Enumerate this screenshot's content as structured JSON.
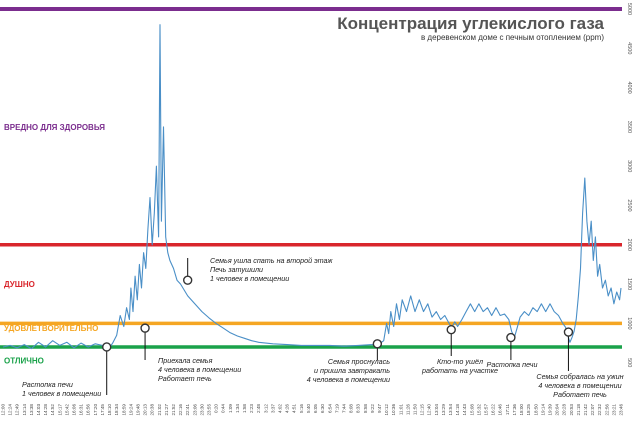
{
  "chart_data": {
    "type": "line",
    "title": "Концентрация углекислого газа",
    "subtitle": "в деревенском доме с печным отоплением (ppm)",
    "ylim": [
      0,
      5000
    ],
    "y_ticks": [
      500,
      1000,
      1500,
      2000,
      2500,
      3000,
      3500,
      4000,
      4500,
      5000
    ],
    "grid": false,
    "line_color": "#4a8fc7",
    "zones": [
      {
        "label": "ВРЕДНО ДЛЯ ЗДОРОВЬЯ",
        "line_value": 5000,
        "label_value": 3500,
        "color": "#7b2d8e"
      },
      {
        "label": "ДУШНО",
        "line_value": 2000,
        "label_value": 1500,
        "color": "#d9262c"
      },
      {
        "label": "УДОВЛЕТВОРИТЕЛЬНО",
        "line_value": 1000,
        "label_value": 940,
        "color": "#f5a623"
      },
      {
        "label": "ОТЛИЧНО",
        "line_value": 700,
        "label_value": 530,
        "color": "#1aa24a"
      }
    ],
    "x_ticks": [
      "12:00",
      "12:24",
      "12:49",
      "13:14",
      "13:38",
      "14:03",
      "14:28",
      "14:52",
      "15:17",
      "15:42",
      "16:06",
      "16:31",
      "16:56",
      "17:20",
      "17:45",
      "18:10",
      "18:34",
      "18:59",
      "19:24",
      "19:48",
      "20:13",
      "20:38",
      "21:02",
      "21:27",
      "21:52",
      "22:16",
      "22:41",
      "23:06",
      "23:30",
      "23:55",
      "0:20",
      "0:44",
      "1:09",
      "1:34",
      "1:58",
      "2:23",
      "2:48",
      "3:12",
      "3:37",
      "4:02",
      "4:26",
      "4:51",
      "5:16",
      "5:40",
      "6:05",
      "6:30",
      "6:54",
      "7:19",
      "7:44",
      "8:08",
      "8:33",
      "8:58",
      "9:22",
      "9:47",
      "10:12",
      "10:36",
      "11:01",
      "11:26",
      "11:50",
      "12:15",
      "12:40",
      "13:04",
      "13:29",
      "13:54",
      "14:18",
      "14:43",
      "15:08",
      "15:32",
      "15:57",
      "16:22",
      "16:46",
      "17:11",
      "17:36",
      "18:00",
      "18:25",
      "18:50",
      "19:14",
      "19:39",
      "20:04",
      "20:28",
      "20:53",
      "21:18",
      "21:42",
      "22:07",
      "22:32",
      "22:56",
      "23:21",
      "23:46"
    ],
    "series": [
      {
        "values": [
          [
            0,
            700
          ],
          [
            1,
            720
          ],
          [
            2,
            690
          ],
          [
            3,
            730
          ],
          [
            4,
            680
          ],
          [
            5,
            760
          ],
          [
            6,
            700
          ],
          [
            7,
            780
          ],
          [
            8,
            720
          ],
          [
            9,
            760
          ],
          [
            10,
            690
          ],
          [
            11,
            750
          ],
          [
            12,
            700
          ],
          [
            13,
            740
          ],
          [
            14,
            720
          ],
          [
            14.6,
            650
          ],
          [
            15,
            690
          ],
          [
            15.5,
            760
          ],
          [
            16,
            850
          ],
          [
            16.5,
            1100
          ],
          [
            17,
            960
          ],
          [
            17.4,
            1200
          ],
          [
            17.8,
            1050
          ],
          [
            18,
            1450
          ],
          [
            18.3,
            1150
          ],
          [
            18.6,
            1600
          ],
          [
            18.9,
            1300
          ],
          [
            19.2,
            1750
          ],
          [
            19.5,
            1450
          ],
          [
            19.8,
            1900
          ],
          [
            20.1,
            1700
          ],
          [
            20.4,
            2200
          ],
          [
            20.7,
            2600
          ],
          [
            21,
            2000
          ],
          [
            21.3,
            2400
          ],
          [
            21.6,
            3000
          ],
          [
            21.9,
            2100
          ],
          [
            22.1,
            4800
          ],
          [
            22.3,
            2300
          ],
          [
            22.6,
            3500
          ],
          [
            22.9,
            2100
          ],
          [
            23.2,
            1900
          ],
          [
            23.5,
            1800
          ],
          [
            24,
            1700
          ],
          [
            24.5,
            1550
          ],
          [
            25,
            1500
          ],
          [
            26,
            1350
          ],
          [
            27,
            1250
          ],
          [
            28,
            1150
          ],
          [
            29,
            1070
          ],
          [
            30,
            1000
          ],
          [
            31,
            940
          ],
          [
            32,
            880
          ],
          [
            33,
            840
          ],
          [
            34,
            810
          ],
          [
            35,
            780
          ],
          [
            36,
            760
          ],
          [
            38,
            740
          ],
          [
            40,
            730
          ],
          [
            42,
            720
          ],
          [
            44,
            720
          ],
          [
            46,
            720
          ],
          [
            48,
            710
          ],
          [
            50,
            720
          ],
          [
            52,
            730
          ],
          [
            53,
            740
          ],
          [
            53.6,
            780
          ],
          [
            54,
            1000
          ],
          [
            54.3,
            870
          ],
          [
            54.6,
            1150
          ],
          [
            55,
            960
          ],
          [
            55.4,
            1250
          ],
          [
            55.8,
            1050
          ],
          [
            56.2,
            1300
          ],
          [
            56.8,
            1150
          ],
          [
            57.4,
            1350
          ],
          [
            58,
            1150
          ],
          [
            58.6,
            1300
          ],
          [
            59.2,
            1150
          ],
          [
            59.8,
            1250
          ],
          [
            60.4,
            1080
          ],
          [
            61,
            1150
          ],
          [
            61.6,
            1050
          ],
          [
            62.2,
            1100
          ],
          [
            62.8,
            1000
          ],
          [
            63.2,
            950
          ],
          [
            63.6,
            1020
          ],
          [
            64,
            960
          ],
          [
            64.6,
            1050
          ],
          [
            65.2,
            1150
          ],
          [
            65.8,
            1250
          ],
          [
            66.4,
            1150
          ],
          [
            67,
            1250
          ],
          [
            67.6,
            1150
          ],
          [
            68.2,
            1200
          ],
          [
            68.8,
            1100
          ],
          [
            69.4,
            1200
          ],
          [
            70,
            1100
          ],
          [
            70.6,
            1120
          ],
          [
            71.2,
            1050
          ],
          [
            71.6,
            900
          ],
          [
            72,
            820
          ],
          [
            72.4,
            950
          ],
          [
            72.8,
            1080
          ],
          [
            73.4,
            1150
          ],
          [
            74,
            1100
          ],
          [
            74.6,
            1200
          ],
          [
            75.2,
            1150
          ],
          [
            75.8,
            1250
          ],
          [
            76.4,
            1150
          ],
          [
            77,
            1250
          ],
          [
            77.6,
            1150
          ],
          [
            78.2,
            1100
          ],
          [
            78.8,
            1000
          ],
          [
            79.2,
            950
          ],
          [
            79.5,
            850
          ],
          [
            79.8,
            760
          ],
          [
            80.1,
            820
          ],
          [
            80.4,
            900
          ],
          [
            80.7,
            1050
          ],
          [
            81,
            1350
          ],
          [
            81.3,
            1700
          ],
          [
            81.6,
            2400
          ],
          [
            81.9,
            2850
          ],
          [
            82.2,
            2300
          ],
          [
            82.5,
            2000
          ],
          [
            82.8,
            2300
          ],
          [
            83.1,
            1800
          ],
          [
            83.4,
            2100
          ],
          [
            83.7,
            1600
          ],
          [
            84,
            1750
          ],
          [
            84.4,
            1450
          ],
          [
            84.8,
            1550
          ],
          [
            85.2,
            1350
          ],
          [
            85.6,
            1450
          ],
          [
            86,
            1250
          ],
          [
            86.4,
            1400
          ],
          [
            86.8,
            1300
          ],
          [
            87,
            1450
          ]
        ]
      }
    ],
    "annotations": [
      {
        "x": 14.6,
        "y": 700,
        "lines": [
          "Растопка печи",
          "1 человек в помещении"
        ]
      },
      {
        "x": 20.0,
        "y": 940,
        "lines": [
          "Приехала семья",
          "4 человека в помещении",
          "Работает печь"
        ]
      },
      {
        "x": 26.0,
        "y": 1550,
        "lines": [
          "Семья ушла спать на второй этаж",
          "Печь затушили",
          "1 человек в помещении"
        ]
      },
      {
        "x": 52.7,
        "y": 740,
        "lines": [
          "Семья проснулась",
          "и пришла завтракать",
          "4 человека в помещении"
        ]
      },
      {
        "x": 63.1,
        "y": 920,
        "lines": [
          "Кто-то ушёл",
          "работать на участке"
        ]
      },
      {
        "x": 71.5,
        "y": 820,
        "lines": [
          "Растопка печи"
        ]
      },
      {
        "x": 79.6,
        "y": 890,
        "lines": [
          "Семья собралась на ужин",
          "4 человека в помещении",
          "Работает печь"
        ]
      }
    ]
  }
}
